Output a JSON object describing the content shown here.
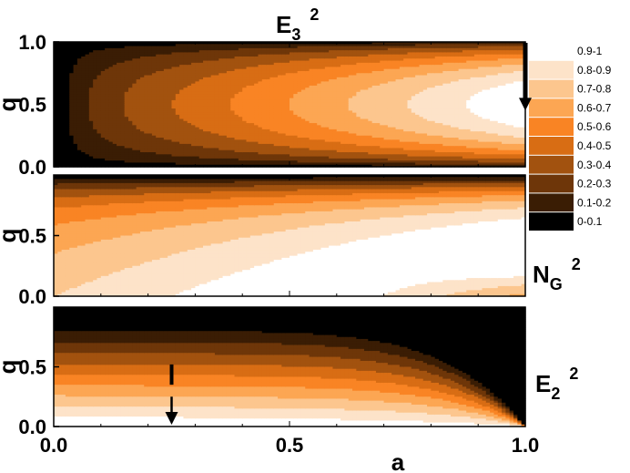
{
  "chart_data": {
    "type": "heatmap",
    "x_axis": {
      "label": "a",
      "range": [
        0.0,
        1.0
      ],
      "ticks": [
        "0.0",
        "0.5",
        "1.0"
      ]
    },
    "colorbar": {
      "levels": [
        "0.9-1",
        "0.8-0.9",
        "0.7-0.8",
        "0.6-0.7",
        "0.5-0.6",
        "0.4-0.5",
        "0.3-0.4",
        "0.2-0.3",
        "0.1-0.2",
        "0-0.1"
      ],
      "colors": [
        "#ffffff",
        "#fde3c9",
        "#fcc68e",
        "#fca653",
        "#f98424",
        "#d86d14",
        "#a2520f",
        "#6e3609",
        "#3a1d04",
        "#000000"
      ]
    },
    "panels": [
      {
        "id": "E3",
        "label_main": "E",
        "label_sub": "3",
        "label_sup": "2",
        "y_axis": {
          "label": "q",
          "range": [
            0.0,
            1.0
          ],
          "ticks": [
            "0.0",
            "0.5",
            "1.0"
          ]
        },
        "annotation": "arrow pointing down at a = 1.0, from q = 1.0 to q = 0.55"
      },
      {
        "id": "NG",
        "label_main": "N",
        "label_sub": "G",
        "label_sup": "2",
        "y_axis": {
          "label": "q",
          "range": [
            0.0,
            1.0
          ],
          "ticks": [
            "0.0",
            "0.5"
          ]
        }
      },
      {
        "id": "E2",
        "label_main": "E",
        "label_sub": "2",
        "label_sup": "2",
        "y_axis": {
          "label": "q",
          "range": [
            0.0,
            1.0
          ],
          "ticks": [
            "0.0",
            "0.5"
          ]
        },
        "annotation": "arrow pointing down at a = 0.25, from q = 0.5 to q = 0.0"
      }
    ]
  }
}
